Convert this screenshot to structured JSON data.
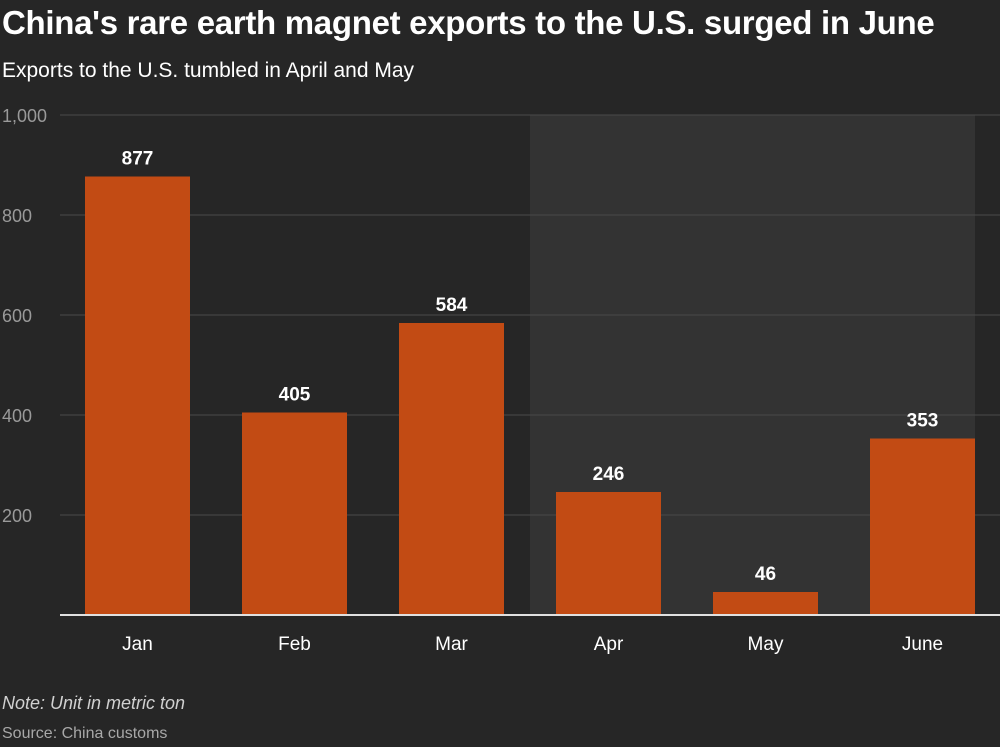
{
  "header": {
    "title": "China's rare earth magnet exports to the U.S. surged in June",
    "subtitle": "Exports to the U.S. tumbled in April and May"
  },
  "footer": {
    "note": "Note: Unit in metric ton",
    "source": "Source: China customs"
  },
  "colors": {
    "background": "#262626",
    "highlight_band": "#333333",
    "bar": "#c24b14",
    "gridline": "#4a4a4a",
    "axis_line": "#e0e0e0",
    "tick_label": "#9a9a9a",
    "category_label": "#ffffff",
    "data_label": "#ffffff"
  },
  "chart_data": {
    "type": "bar",
    "title": "China's rare earth magnet exports to the U.S. surged in June",
    "subtitle": "Exports to the U.S. tumbled in April and May",
    "categories": [
      "Jan",
      "Feb",
      "Mar",
      "Apr",
      "May",
      "June"
    ],
    "values": [
      877,
      405,
      584,
      246,
      46,
      353
    ],
    "data_labels": [
      "877",
      "405",
      "584",
      "246",
      "46",
      "353"
    ],
    "ylim": [
      0,
      1000
    ],
    "yticks": [
      200,
      400,
      600,
      800,
      1000
    ],
    "ytick_labels": [
      "200",
      "400",
      "600",
      "800",
      "1,000"
    ],
    "highlight_categories": [
      "Apr",
      "May",
      "June"
    ],
    "grid": true,
    "legend": "none",
    "note": "Note: Unit in metric ton",
    "source": "Source: China customs"
  }
}
